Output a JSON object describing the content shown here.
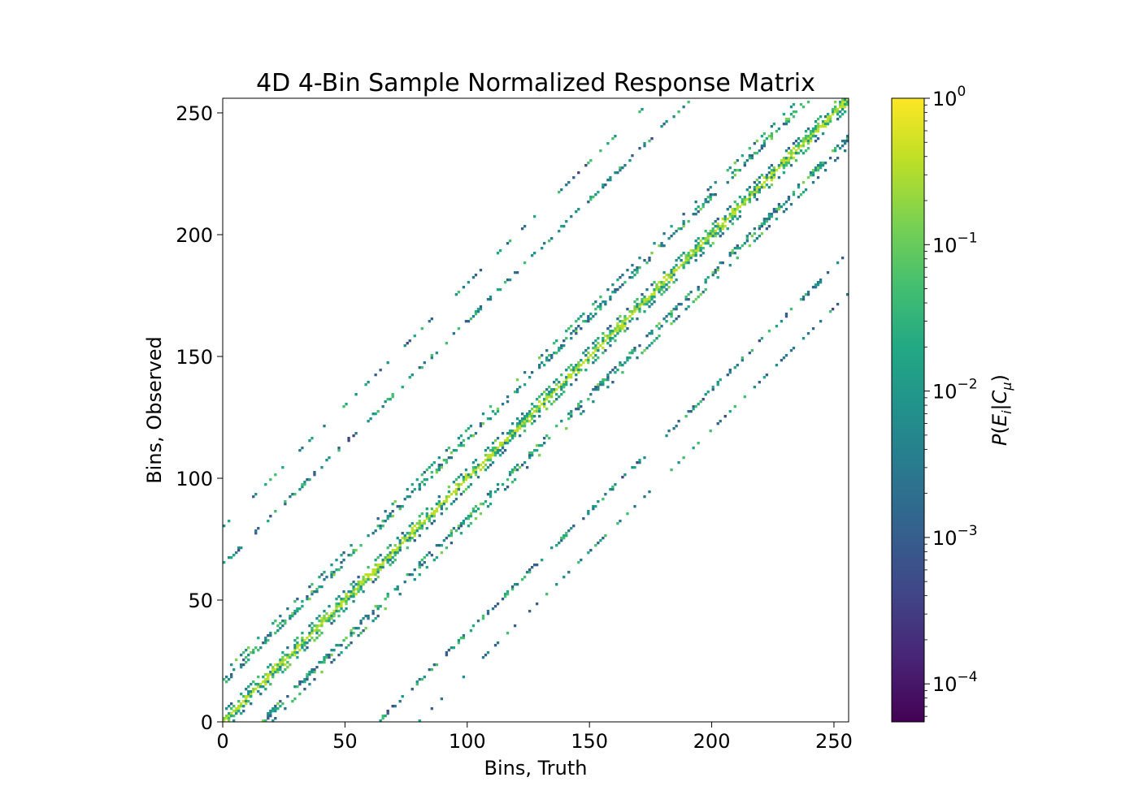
{
  "chart_data": {
    "type": "heatmap",
    "title": "4D 4-Bin Sample Normalized Response Matrix",
    "xlabel": "Bins, Truth",
    "ylabel": "Bins, Observed",
    "xlim": [
      0,
      256
    ],
    "ylim": [
      0,
      256
    ],
    "x_ticks": [
      0,
      50,
      100,
      150,
      200,
      250
    ],
    "y_ticks": [
      0,
      50,
      100,
      150,
      200,
      250
    ],
    "x_tick_labels": [
      "0",
      "50",
      "100",
      "150",
      "200",
      "250"
    ],
    "y_tick_labels": [
      "0",
      "50",
      "100",
      "150",
      "200",
      "250"
    ],
    "grid": false,
    "colormap": "viridis",
    "color_scale": "log",
    "colorbar": {
      "label": "P(E_i|C_μ)",
      "vmin": 5.5e-05,
      "vmax": 1,
      "ticks": [
        0.0001,
        0.001,
        0.01,
        0.1,
        1
      ],
      "tick_labels": [
        "10^-4",
        "10^-3",
        "10^-2",
        "10^-1",
        "10^0"
      ]
    },
    "matrix_size": 256,
    "structure": "4x4 block response matrix with 64-bin blocks; nonzero cells along the diagonal (values near 0.3-0.5) and along off-diagonal bands offset by ±16 and ±64 bins (values ~1e-3 to 1e-1); white cells are zero"
  },
  "colors": {
    "viridis_low": "#440154",
    "viridis_high": "#fde725",
    "zero_cell": "#ffffff"
  }
}
